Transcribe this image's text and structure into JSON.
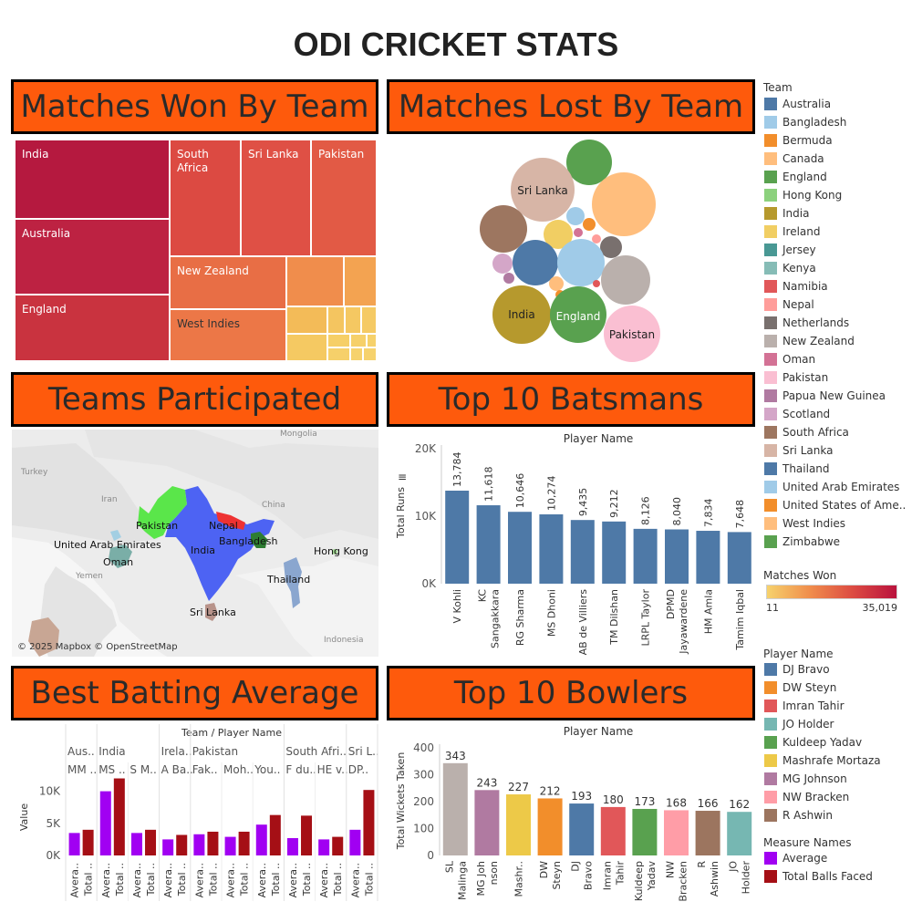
{
  "dashboard": {
    "title": "ODI CRICKET STATS"
  },
  "panels": {
    "won": "Matches Won By Team",
    "lost": "Matches Lost By Team",
    "teams": "Teams Participated",
    "batsmen": "Top 10 Batsmans",
    "average": "Best Batting Average",
    "bowlers": "Top 10 Bowlers"
  },
  "treemap": {
    "labels": {
      "india": "India",
      "australia": "Australia",
      "england": "England",
      "south_africa": "South Africa",
      "sri_lanka": "Sri Lanka",
      "pakistan": "Pakistan",
      "new_zealand": "New Zealand",
      "west_indies": "West Indies"
    }
  },
  "bubbles": {
    "sri_lanka": "Sri Lanka",
    "india": "India",
    "england": "England",
    "pakistan": "Pakistan"
  },
  "map": {
    "labels": {
      "pakistan": "Pakistan",
      "nepal": "Nepal",
      "uae": "United Arab Emirates",
      "bangladesh": "Bangladesh",
      "india": "India",
      "oman": "Oman",
      "hong_kong": "Hong Kong",
      "thailand": "Thailand",
      "sri_lanka": "Sri Lanka"
    },
    "base_labels": {
      "mongolia": "Mongolia",
      "turkey": "Turkey",
      "iran": "Iran",
      "china": "China",
      "yemen": "Yemen",
      "indonesia": "Indonesia"
    },
    "attribution": "© 2025 Mapbox © OpenStreetMap"
  },
  "legend_team": {
    "title": "Team",
    "items": [
      {
        "name": "Australia",
        "color": "#4e79a7"
      },
      {
        "name": "Bangladesh",
        "color": "#a0cbe8"
      },
      {
        "name": "Bermuda",
        "color": "#f28e2b"
      },
      {
        "name": "Canada",
        "color": "#ffbe7d"
      },
      {
        "name": "England",
        "color": "#59a14f"
      },
      {
        "name": "Hong Kong",
        "color": "#8cd17d"
      },
      {
        "name": "India",
        "color": "#b6992d"
      },
      {
        "name": "Ireland",
        "color": "#f1ce63"
      },
      {
        "name": "Jersey",
        "color": "#499894"
      },
      {
        "name": "Kenya",
        "color": "#86bcb6"
      },
      {
        "name": "Namibia",
        "color": "#e15759"
      },
      {
        "name": "Nepal",
        "color": "#ff9d9a"
      },
      {
        "name": "Netherlands",
        "color": "#79706e"
      },
      {
        "name": "New Zealand",
        "color": "#bab0ac"
      },
      {
        "name": "Oman",
        "color": "#d37295"
      },
      {
        "name": "Pakistan",
        "color": "#fabfd2"
      },
      {
        "name": "Papua New Guinea",
        "color": "#b07aa1"
      },
      {
        "name": "Scotland",
        "color": "#d4a6c8"
      },
      {
        "name": "South Africa",
        "color": "#9d7660"
      },
      {
        "name": "Sri Lanka",
        "color": "#d7b5a6"
      },
      {
        "name": "Thailand",
        "color": "#4e79a7"
      },
      {
        "name": "United Arab Emirates",
        "color": "#a0cbe8"
      },
      {
        "name": "United States of Ame..",
        "color": "#f28e2b"
      },
      {
        "name": "West Indies",
        "color": "#ffbe7d"
      },
      {
        "name": "Zimbabwe",
        "color": "#59a14f"
      }
    ]
  },
  "legend_won": {
    "title": "Matches Won",
    "min": "11",
    "max": "35,019",
    "color_low": "#f6d26d",
    "color_high": "#b9123d"
  },
  "legend_player": {
    "title": "Player Name",
    "items": [
      {
        "name": "DJ Bravo",
        "color": "#4e79a7"
      },
      {
        "name": "DW Steyn",
        "color": "#f28e2b"
      },
      {
        "name": "Imran Tahir",
        "color": "#e15759"
      },
      {
        "name": "JO Holder",
        "color": "#76b7b2"
      },
      {
        "name": "Kuldeep Yadav",
        "color": "#59a14f"
      },
      {
        "name": "Mashrafe Mortaza",
        "color": "#edc948"
      },
      {
        "name": "MG Johnson",
        "color": "#b07aa1"
      },
      {
        "name": "NW Bracken",
        "color": "#ff9da7"
      },
      {
        "name": "R Ashwin",
        "color": "#9c755f"
      }
    ]
  },
  "legend_measure": {
    "title": "Measure Names",
    "items": [
      {
        "name": "Average",
        "color": "#a100f2"
      },
      {
        "name": "Total Balls Faced",
        "color": "#a50f15"
      }
    ]
  },
  "chart_data": [
    {
      "type": "bar",
      "id": "batsmen",
      "title": "Player Name",
      "ylabel": "Total Runs",
      "categories": [
        "V Kohli",
        "KC Sangakkara",
        "RG Sharma",
        "MS Dhoni",
        "AB de Villiers",
        "TM Dilshan",
        "LRPL Taylor",
        "DPMD Jayawardene",
        "HM Amla",
        "Tamim Iqbal"
      ],
      "tick_lines": [
        [
          "V Kohli"
        ],
        [
          "KC",
          "Sangakkara"
        ],
        [
          "RG Sharma"
        ],
        [
          "MS Dhoni"
        ],
        [
          "AB de Villiers"
        ],
        [
          "TM Dilshan"
        ],
        [
          "LRPL Taylor"
        ],
        [
          "DPMD",
          "Jayawardene"
        ],
        [
          "HM Amla"
        ],
        [
          "Tamim Iqbal"
        ]
      ],
      "values": [
        13784,
        11618,
        10646,
        10274,
        9435,
        9212,
        8126,
        8040,
        7834,
        7648
      ],
      "value_labels": [
        "13,784",
        "11,618",
        "10,646",
        "10,274",
        "9,435",
        "9,212",
        "8,126",
        "8,040",
        "7,834",
        "7,648"
      ],
      "ylim": [
        0,
        20000
      ],
      "yticks": [
        {
          "v": 0,
          "label": "0K"
        },
        {
          "v": 10000,
          "label": "10K"
        },
        {
          "v": 20000,
          "label": "20K"
        }
      ],
      "color": "#4e79a7"
    },
    {
      "type": "bar",
      "id": "bowlers",
      "title": "Player Name",
      "ylabel": "Total Wickets Taken",
      "categories": [
        "SL Malinga",
        "MG Johnson",
        "Mashrafe Mortaza",
        "DW Steyn",
        "DJ Bravo",
        "Imran Tahir",
        "Kuldeep Yadav",
        "NW Bracken",
        "R Ashwin",
        "JO Holder"
      ],
      "tick_lines": [
        [
          "SL",
          "Malinga"
        ],
        [
          "MG Joh",
          "nson"
        ],
        [
          "Mashr.."
        ],
        [
          "DW",
          "Steyn"
        ],
        [
          "DJ",
          "Bravo"
        ],
        [
          "Imran",
          "Tahir"
        ],
        [
          "Kuldeep",
          "Yadav"
        ],
        [
          "NW",
          "Bracken"
        ],
        [
          "R",
          "Ashwin"
        ],
        [
          "JO",
          "Holder"
        ]
      ],
      "values": [
        343,
        243,
        227,
        212,
        193,
        180,
        173,
        168,
        166,
        162
      ],
      "value_labels": [
        "343",
        "243",
        "227",
        "212",
        "193",
        "180",
        "173",
        "168",
        "166",
        "162"
      ],
      "colors": [
        "#bab0ac",
        "#b07aa1",
        "#edc948",
        "#f28e2b",
        "#4e79a7",
        "#e15759",
        "#59a14f",
        "#ff9da7",
        "#9c755f",
        "#76b7b2"
      ],
      "ylim": [
        0,
        400
      ],
      "yticks": [
        {
          "v": 0,
          "label": "0"
        },
        {
          "v": 100,
          "label": "100"
        },
        {
          "v": 200,
          "label": "200"
        },
        {
          "v": 300,
          "label": "300"
        },
        {
          "v": 400,
          "label": "400"
        }
      ]
    },
    {
      "type": "bar",
      "id": "batting_average",
      "title": "Team / Player Name",
      "ylabel": "Value",
      "teams": [
        {
          "label": "Aus..",
          "players": [
            {
              "label": "MM ..",
              "values": [
                3500,
                4000
              ]
            }
          ]
        },
        {
          "label": "India",
          "players": [
            {
              "label": "MS ..",
              "values": [
                10000,
                12000
              ]
            },
            {
              "label": "S M..",
              "values": [
                3500,
                4000
              ]
            }
          ]
        },
        {
          "label": "Irela..",
          "players": [
            {
              "label": "A Ba..",
              "values": [
                2500,
                3200
              ]
            }
          ]
        },
        {
          "label": "Pakistan",
          "players": [
            {
              "label": "Fak..",
              "values": [
                3300,
                3700
              ]
            },
            {
              "label": "Moh..",
              "values": [
                2900,
                3700
              ]
            },
            {
              "label": "You..",
              "values": [
                4800,
                6300
              ]
            }
          ]
        },
        {
          "label": "South Afri..",
          "players": [
            {
              "label": "F du..",
              "values": [
                2700,
                6200
              ]
            },
            {
              "label": "HE v..",
              "values": [
                2500,
                2900
              ]
            }
          ]
        },
        {
          "label": "Sri L..",
          "players": [
            {
              "label": "DP..",
              "values": [
                4000,
                10200
              ]
            }
          ]
        }
      ],
      "measures": [
        "Average",
        "Total Balls Faced"
      ],
      "measure_ticks": [
        "Avera..",
        "Total .."
      ],
      "ylim": [
        0,
        12500
      ],
      "yticks": [
        {
          "v": 0,
          "label": "0K"
        },
        {
          "v": 5000,
          "label": "5K"
        },
        {
          "v": 10000,
          "label": "10K"
        }
      ],
      "colors": [
        "#a100f2",
        "#a50f15"
      ]
    }
  ]
}
